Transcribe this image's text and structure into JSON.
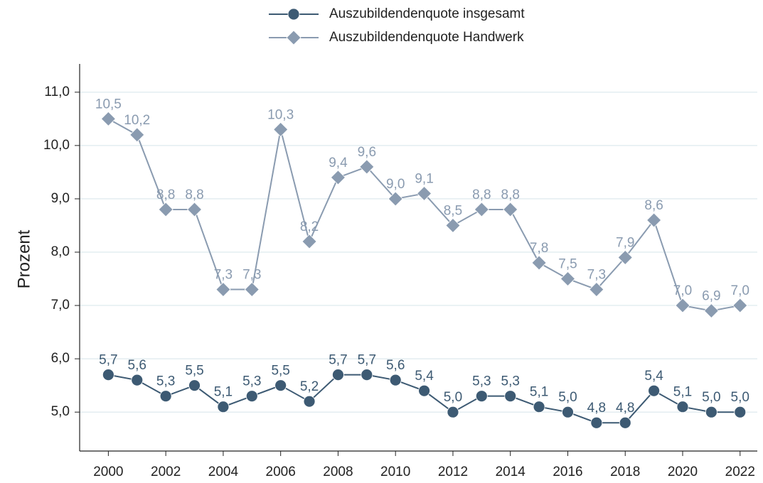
{
  "chart_data": {
    "type": "line",
    "y_label": "Prozent",
    "x": [
      2000,
      2001,
      2002,
      2003,
      2004,
      2005,
      2006,
      2007,
      2008,
      2009,
      2010,
      2011,
      2012,
      2013,
      2014,
      2015,
      2016,
      2017,
      2018,
      2019,
      2020,
      2021,
      2022
    ],
    "series": [
      {
        "name": "Auszubildendenquote insgesamt",
        "color": "#3d5a73",
        "marker": "circle",
        "values": [
          5.7,
          5.6,
          5.3,
          5.5,
          5.1,
          5.3,
          5.5,
          5.2,
          5.7,
          5.7,
          5.6,
          5.4,
          5.0,
          5.3,
          5.3,
          5.1,
          5.0,
          4.8,
          4.8,
          5.4,
          5.1,
          5.0,
          5.0
        ],
        "value_labels": [
          "5,7",
          "5,6",
          "5,3",
          "5,5",
          "5,1",
          "5,3",
          "5,5",
          "5,2",
          "5,7",
          "5,7",
          "5,6",
          "5,4",
          "5,0",
          "5,3",
          "5,3",
          "5,1",
          "5,0",
          "4,8",
          "4,8",
          "5,4",
          "5,1",
          "5,0",
          "5,0"
        ]
      },
      {
        "name": "Auszubildendenquote Handwerk",
        "color": "#8a9bb0",
        "marker": "diamond",
        "values": [
          10.5,
          10.2,
          8.8,
          8.8,
          7.3,
          7.3,
          10.3,
          8.2,
          9.4,
          9.6,
          9.0,
          9.1,
          8.5,
          8.8,
          8.8,
          7.8,
          7.5,
          7.3,
          7.9,
          8.6,
          7.0,
          6.9,
          7.0
        ],
        "value_labels": [
          "10,5",
          "10,2",
          "8,8",
          "8,8",
          "7,3",
          "7,3",
          "10,3",
          "8,2",
          "9,4",
          "9,6",
          "9,0",
          "9,1",
          "8,5",
          "8,8",
          "8,8",
          "7,8",
          "7,5",
          "7,3",
          "7,9",
          "8,6",
          "7,0",
          "6,9",
          "7,0"
        ]
      }
    ],
    "xlim": [
      1999,
      2022.6
    ],
    "xticks": [
      2000,
      2002,
      2004,
      2006,
      2008,
      2010,
      2012,
      2014,
      2016,
      2018,
      2020,
      2022
    ],
    "ylim": [
      4.27,
      11.53
    ],
    "yticks": [
      {
        "value": 5,
        "label": "5,0"
      },
      {
        "value": 6,
        "label": "6,0"
      },
      {
        "value": 7,
        "label": "7,0"
      },
      {
        "value": 8,
        "label": "8,0"
      },
      {
        "value": 9,
        "label": "9,0"
      },
      {
        "value": 10,
        "label": "10,0"
      },
      {
        "value": 11,
        "label": "11,0"
      }
    ],
    "grid": true,
    "legend": "top"
  }
}
